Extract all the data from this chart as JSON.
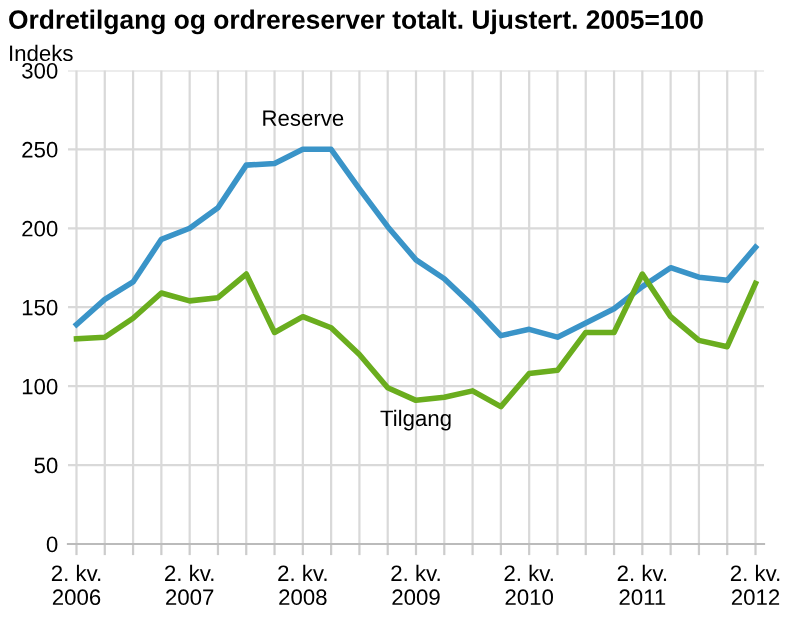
{
  "chart_data": {
    "type": "line",
    "title": "Ordretilgang og ordrereserver totalt. Ujustert. 2005=100",
    "ylabel": "Indeks",
    "categories": [
      "2. kv.\n2006",
      null,
      null,
      null,
      "2. kv.\n2007",
      null,
      null,
      null,
      "2. kv.\n2008",
      null,
      null,
      null,
      "2. kv.\n2009",
      null,
      null,
      null,
      "2. kv.\n2010",
      null,
      null,
      null,
      "2. kv.\n2011",
      null,
      null,
      null,
      "2. kv.\n2012"
    ],
    "series": [
      {
        "name": "Reserve",
        "color": "#3a94c8",
        "values": [
          139,
          155,
          166,
          193,
          200,
          213,
          240,
          241,
          250,
          250,
          225,
          201,
          180,
          168,
          151,
          132,
          136,
          131,
          140,
          149,
          163,
          175,
          169,
          167,
          188
        ]
      },
      {
        "name": "Tilgang",
        "color": "#6aad1e",
        "values": [
          130,
          131,
          143,
          159,
          154,
          156,
          171,
          134,
          144,
          137,
          120,
          99,
          91,
          93,
          97,
          87,
          108,
          110,
          134,
          134,
          171,
          144,
          129,
          125,
          165
        ]
      }
    ],
    "ylim": [
      0,
      300
    ],
    "yticks": [
      0,
      50,
      100,
      150,
      200,
      250,
      300
    ],
    "grid": true,
    "legend": false,
    "marker": "none",
    "line_style": "solid"
  }
}
